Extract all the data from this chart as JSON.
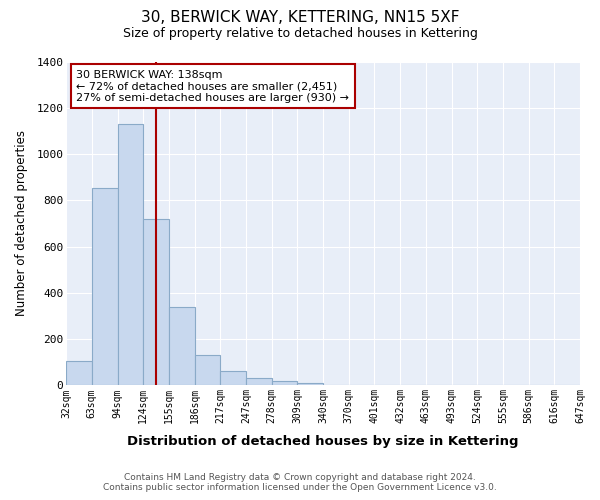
{
  "title": "30, BERWICK WAY, KETTERING, NN15 5XF",
  "subtitle": "Size of property relative to detached houses in Kettering",
  "xlabel": "Distribution of detached houses by size in Kettering",
  "ylabel": "Number of detached properties",
  "bar_values": [
    105,
    855,
    1130,
    720,
    340,
    130,
    60,
    30,
    20,
    10,
    0,
    0,
    0,
    0,
    0,
    0,
    0,
    0,
    0,
    0
  ],
  "categories": [
    "32sqm",
    "63sqm",
    "94sqm",
    "124sqm",
    "155sqm",
    "186sqm",
    "217sqm",
    "247sqm",
    "278sqm",
    "309sqm",
    "340sqm",
    "370sqm",
    "401sqm",
    "432sqm",
    "463sqm",
    "493sqm",
    "524sqm",
    "555sqm",
    "586sqm",
    "616sqm",
    "647sqm"
  ],
  "bar_color": "#c8d8ee",
  "bar_edge_color": "#8aaac8",
  "vline_x": 3,
  "vline_color": "#aa0000",
  "box_text_line1": "30 BERWICK WAY: 138sqm",
  "box_text_line2": "← 72% of detached houses are smaller (2,451)",
  "box_text_line3": "27% of semi-detached houses are larger (930) →",
  "box_color": "white",
  "box_edge_color": "#aa0000",
  "ylim": [
    0,
    1400
  ],
  "yticks": [
    0,
    200,
    400,
    600,
    800,
    1000,
    1200,
    1400
  ],
  "footnote_line1": "Contains HM Land Registry data © Crown copyright and database right 2024.",
  "footnote_line2": "Contains public sector information licensed under the Open Government Licence v3.0.",
  "plot_bg_color": "#e8eef8",
  "fig_bg_color": "#ffffff",
  "grid_color": "#ffffff"
}
